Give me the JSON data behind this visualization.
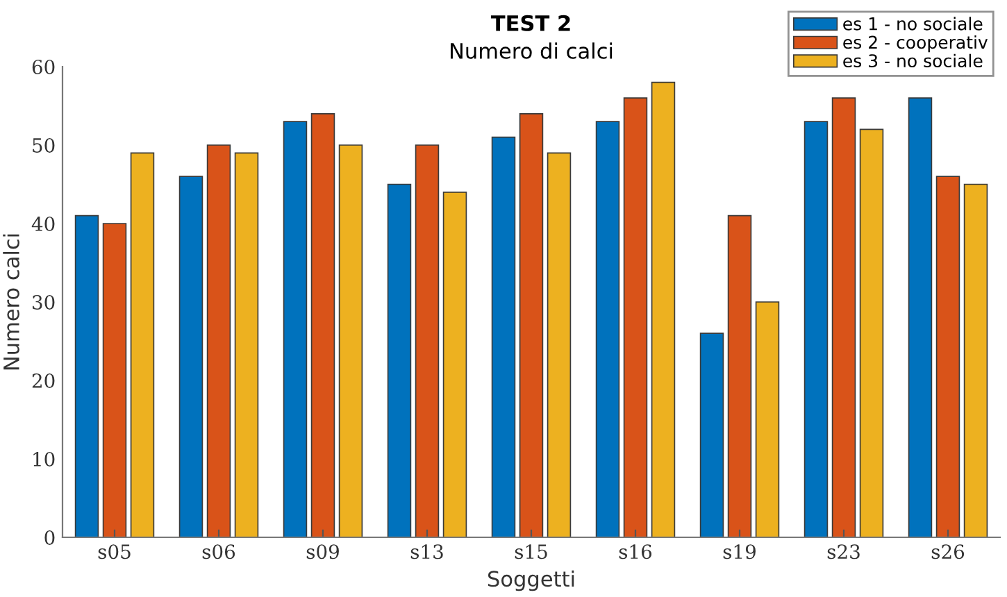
{
  "chart_data": {
    "type": "bar",
    "title": "TEST 2",
    "subtitle": "Numero di calci",
    "xlabel": "Soggetti",
    "ylabel": "Numero calci",
    "categories": [
      "s05",
      "s06",
      "s09",
      "s13",
      "s15",
      "s16",
      "s19",
      "s23",
      "s26"
    ],
    "series": [
      {
        "name": "es 1 - no sociale",
        "color": "#0072bd",
        "values": [
          41,
          46,
          53,
          45,
          51,
          53,
          26,
          53,
          56
        ]
      },
      {
        "name": "es 2 - cooperativ",
        "color": "#d95319",
        "values": [
          40,
          50,
          54,
          50,
          54,
          56,
          41,
          56,
          46
        ]
      },
      {
        "name": "es 3 - no sociale",
        "color": "#edb120",
        "values": [
          49,
          49,
          50,
          44,
          49,
          58,
          30,
          52,
          45
        ]
      }
    ],
    "ylim": [
      0,
      60
    ],
    "yticks": [
      0,
      10,
      20,
      30,
      40,
      50,
      60
    ],
    "grid": false,
    "legend": "top right"
  }
}
